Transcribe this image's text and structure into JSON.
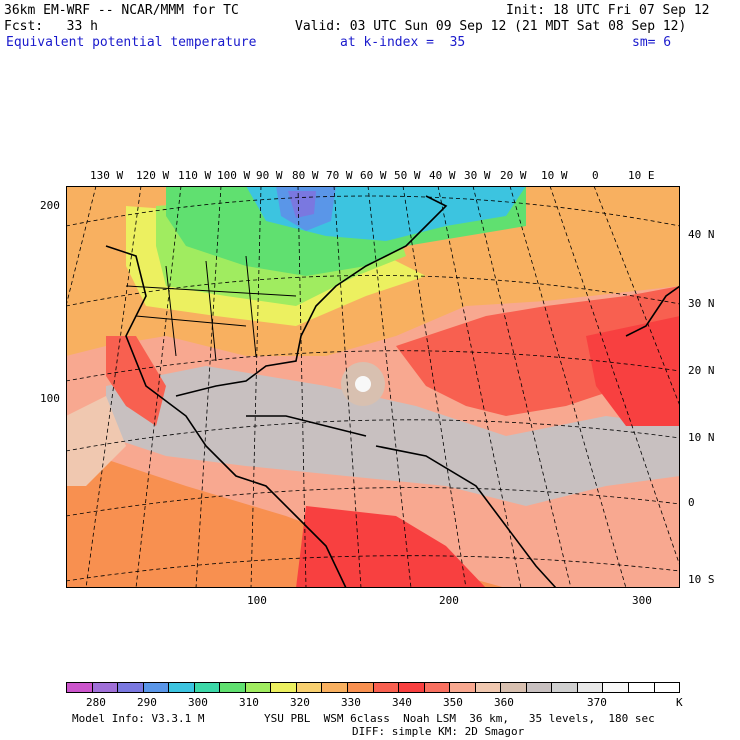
{
  "header": {
    "model_title": "36km EM-WRF -- NCAR/MMM for TC",
    "init_time": "Init: 18 UTC Fri 07 Sep 12",
    "forecast": "Fcst:   33 h",
    "valid_time": "Valid: 03 UTC Sun 09 Sep 12 (21 MDT Sat 08 Sep 12)",
    "field_name": "Equivalent potential temperature",
    "level": "at k-index =  35",
    "smoothing": "sm= 6"
  },
  "map": {
    "top_lon_labels": [
      "130 W",
      "120 W",
      "110 W",
      "100 W",
      "90 W",
      "80 W",
      "70 W",
      "60 W",
      "50 W",
      "40 W",
      "30 W",
      "20 W",
      "10 W",
      "0",
      "10 E"
    ],
    "right_lat_labels": [
      "40 N",
      "30 N",
      "20 N",
      "10 N",
      "0",
      "10 S"
    ],
    "left_grid_labels": [
      "200",
      "100"
    ],
    "bottom_grid_labels": [
      "100",
      "200",
      "300"
    ]
  },
  "colorbar": {
    "colors": [
      "#cc55cc",
      "#a070d8",
      "#7a78e0",
      "#5a96e8",
      "#3cc4e0",
      "#3cd8a8",
      "#60e070",
      "#a0ec60",
      "#ecf060",
      "#f8d070",
      "#f8b060",
      "#f89050",
      "#f86050",
      "#f84040",
      "#f87060",
      "#f8a890",
      "#f0c8b0",
      "#d8c0b0",
      "#c8c0c0",
      "#d0d0d0",
      "#e8e8e8",
      "#f8f8f8",
      "#ffffff",
      "#ffffff"
    ],
    "tick_labels": [
      "280",
      "290",
      "300",
      "310",
      "320",
      "330",
      "340",
      "350",
      "360",
      "370"
    ],
    "unit": "K"
  },
  "footer": {
    "model_info": "Model Info: V3.3.1 M",
    "physics_line1": "YSU PBL  WSM 6class  Noah LSM  36 km,   35 levels,  180 sec",
    "physics_line2": "DIFF: simple KM: 2D Smagor"
  }
}
